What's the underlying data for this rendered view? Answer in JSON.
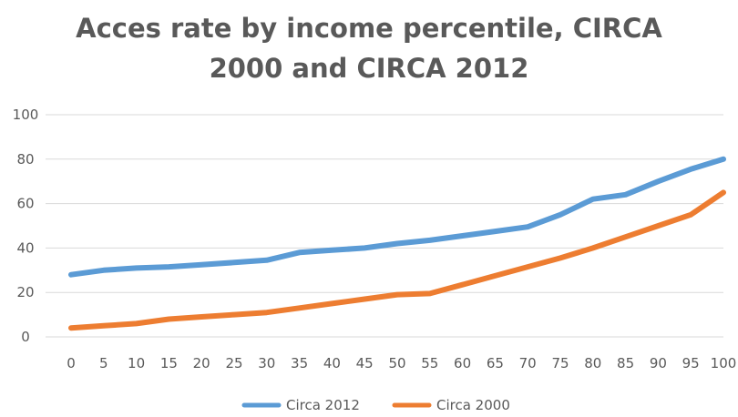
{
  "chart_data": {
    "type": "line",
    "title_line1": "Acces rate by income percentile, CIRCA",
    "title_line2": "2000 and CIRCA 2012",
    "x": [
      0,
      5,
      10,
      15,
      20,
      25,
      30,
      35,
      40,
      45,
      50,
      55,
      60,
      65,
      70,
      75,
      80,
      85,
      90,
      95,
      100
    ],
    "x_tick_labels": [
      "0",
      "5",
      "10",
      "15",
      "20",
      "25",
      "30",
      "35",
      "40",
      "45",
      "50",
      "55",
      "60",
      "65",
      "70",
      "75",
      "80",
      "85",
      "90",
      "95",
      "100"
    ],
    "y_tick_labels": [
      "0",
      "20",
      "40",
      "60",
      "80",
      "100"
    ],
    "ylim": [
      0,
      100
    ],
    "grid": true,
    "legend_position": "bottom",
    "series": [
      {
        "name": "Circa 2012",
        "color": "#5b9bd5",
        "values": [
          28,
          30,
          31,
          31.5,
          32.5,
          33.5,
          34.5,
          38,
          39,
          40,
          42,
          43.5,
          45.5,
          47.5,
          49.5,
          55,
          62,
          64,
          70,
          75.5,
          80
        ]
      },
      {
        "name": "Circa 2000",
        "color": "#ed7d31",
        "values": [
          4,
          5,
          6,
          8,
          9,
          10,
          11,
          13,
          15,
          17,
          19,
          19.5,
          23.5,
          27.5,
          31.5,
          35.5,
          40,
          45,
          50,
          55,
          65
        ]
      }
    ]
  }
}
